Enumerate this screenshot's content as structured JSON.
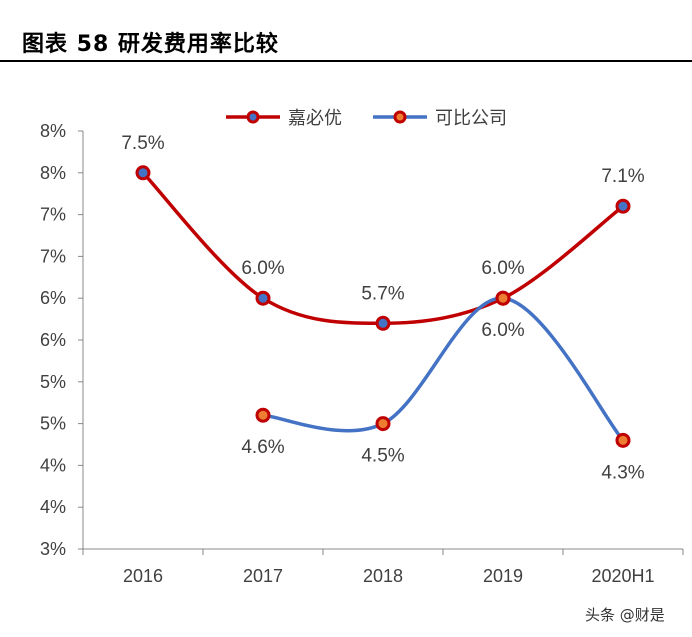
{
  "header": {
    "title": "图表 58  研发费用率比较"
  },
  "watermark": "头条 @财是",
  "chart_data": {
    "type": "line",
    "title": "",
    "xlabel": "",
    "ylabel": "",
    "categories": [
      "2016",
      "2017",
      "2018",
      "2019",
      "2020H1"
    ],
    "ylim": [
      3,
      8
    ],
    "y_ticks": [
      3,
      3.5,
      4,
      4.5,
      5,
      5.5,
      6,
      6.5,
      7,
      7.5,
      8
    ],
    "y_tick_labels": [
      "3%",
      "4%",
      "4%",
      "5%",
      "5%",
      "6%",
      "6%",
      "7%",
      "7%",
      "8%",
      "8%"
    ],
    "grid": false,
    "smooth": true,
    "legend_position": "top",
    "series": [
      {
        "name": "嘉必优",
        "values": [
          7.5,
          6.0,
          5.7,
          6.0,
          7.1
        ],
        "labels": [
          "7.5%",
          "6.0%",
          "5.7%",
          "6.0%",
          "7.1%"
        ],
        "line_color": "#C00000",
        "marker_fill": "#4472C4",
        "marker_edge": "#C00000",
        "label_side": "above"
      },
      {
        "name": "可比公司",
        "values": [
          null,
          4.6,
          4.5,
          6.0,
          4.3
        ],
        "labels": [
          null,
          "4.6%",
          "4.5%",
          "6.0%",
          "4.3%"
        ],
        "line_color": "#4472C4",
        "marker_fill": "#ED7D31",
        "marker_edge": "#C00000",
        "label_side": "below"
      }
    ]
  }
}
